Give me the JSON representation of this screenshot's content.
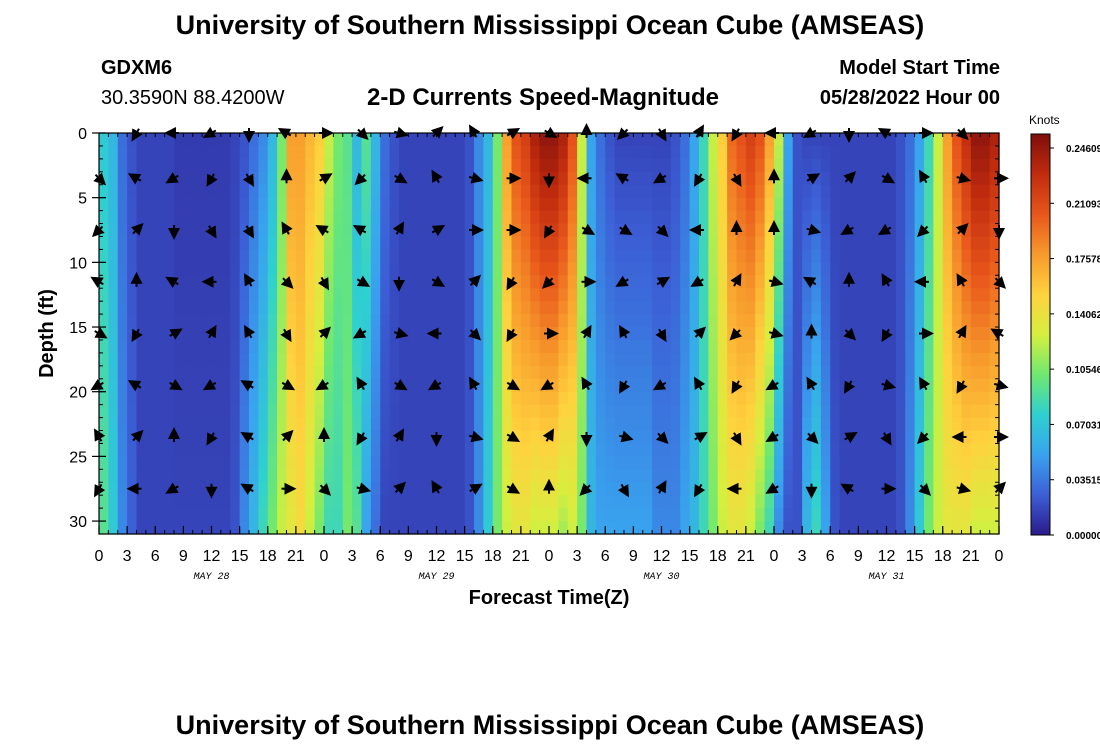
{
  "header": {
    "title": "University of Southern Mississippi Ocean Cube (AMSEAS)",
    "station_id": "GDXM6",
    "location": "30.3590N  88.4200W",
    "subtitle": "2-D Currents Speed-Magnitude",
    "model_start_label": "Model Start Time",
    "model_start_value": "05/28/2022 Hour 00"
  },
  "footer": {
    "title": "University of Southern Mississippi Ocean Cube (AMSEAS)"
  },
  "chart_data": {
    "type": "heatmap",
    "title": "2-D Currents Speed-Magnitude",
    "xlabel": "Forecast Time(Z)",
    "ylabel": "Depth (ft)",
    "x_hours_range": [
      0,
      96
    ],
    "ylim": [
      0,
      31
    ],
    "y_inverted": true,
    "x_tick_labels": [
      "0",
      "3",
      "6",
      "9",
      "12",
      "15",
      "18",
      "21",
      "0",
      "3",
      "6",
      "9",
      "12",
      "15",
      "18",
      "21",
      "0",
      "3",
      "6",
      "9",
      "12",
      "15",
      "18",
      "21",
      "0",
      "3",
      "6",
      "9",
      "12",
      "15",
      "18",
      "21",
      "0"
    ],
    "y_ticks": [
      0,
      5,
      10,
      15,
      20,
      25,
      30
    ],
    "y_tick_labels": [
      "0",
      "5",
      "10",
      "15",
      "20",
      "25",
      "30"
    ],
    "day_labels": [
      {
        "label": "MAY 28",
        "hour": 12
      },
      {
        "label": "MAY 29",
        "hour": 36
      },
      {
        "label": "MAY 30",
        "hour": 60
      },
      {
        "label": "MAY 31",
        "hour": 84
      }
    ],
    "colorbar": {
      "units": "Knots",
      "ticks": [
        "0.24609",
        "0.21093",
        "0.17578",
        "0.14062",
        "0.10546",
        "0.07031",
        "0.03515",
        "0.00000"
      ],
      "colors": [
        "#2b1a8a",
        "#3c5fd6",
        "#39a2ee",
        "#2fd0d0",
        "#6fe870",
        "#d6ef3e",
        "#ffd23e",
        "#f79a2c",
        "#e8561b",
        "#c02b0e",
        "#7e0f0c"
      ],
      "vmin": 0,
      "vmax": 0.24609
    },
    "speed_profile": {
      "hours": [
        0,
        1,
        2,
        3,
        4,
        5,
        6,
        7,
        8,
        9,
        10,
        11,
        12,
        13,
        14,
        15,
        16,
        17,
        18,
        19,
        20,
        21,
        22,
        23,
        24,
        25,
        26,
        27,
        28,
        29,
        30,
        31,
        32,
        33,
        34,
        35,
        36,
        37,
        38,
        39,
        40,
        41,
        42,
        43,
        44,
        45,
        46,
        47,
        48,
        49,
        50,
        51,
        52,
        53,
        54,
        55,
        56,
        57,
        58,
        59,
        60,
        61,
        62,
        63,
        64,
        65,
        66,
        67,
        68,
        69,
        70,
        71,
        72,
        73,
        74,
        75,
        76,
        77,
        78,
        79,
        80,
        81,
        82,
        83,
        84,
        85,
        86,
        87,
        88,
        89,
        90,
        91,
        92,
        93,
        94,
        95,
        96
      ],
      "surface": [
        0.07,
        0.06,
        0.03,
        0.02,
        0.015,
        0.015,
        0.015,
        0.015,
        0.012,
        0.012,
        0.012,
        0.012,
        0.012,
        0.012,
        0.015,
        0.02,
        0.03,
        0.04,
        0.06,
        0.1,
        0.17,
        0.17,
        0.16,
        0.15,
        0.12,
        0.1,
        0.09,
        0.06,
        0.09,
        0.06,
        0.03,
        0.02,
        0.015,
        0.015,
        0.015,
        0.015,
        0.015,
        0.015,
        0.015,
        0.02,
        0.04,
        0.06,
        0.1,
        0.17,
        0.2,
        0.21,
        0.23,
        0.24,
        0.24,
        0.23,
        0.2,
        0.12,
        0.05,
        0.03,
        0.02,
        0.015,
        0.015,
        0.015,
        0.015,
        0.015,
        0.015,
        0.02,
        0.03,
        0.05,
        0.08,
        0.12,
        0.15,
        0.19,
        0.2,
        0.21,
        0.2,
        0.17,
        0.12,
        0.05,
        0.02,
        0.015,
        0.015,
        0.015,
        0.015,
        0.015,
        0.015,
        0.015,
        0.015,
        0.015,
        0.015,
        0.02,
        0.03,
        0.05,
        0.08,
        0.12,
        0.17,
        0.2,
        0.22,
        0.24,
        0.24,
        0.23,
        0.2
      ],
      "bottom": [
        0.09,
        0.07,
        0.04,
        0.025,
        0.015,
        0.015,
        0.015,
        0.015,
        0.015,
        0.015,
        0.015,
        0.015,
        0.015,
        0.015,
        0.02,
        0.04,
        0.06,
        0.08,
        0.1,
        0.12,
        0.13,
        0.14,
        0.12,
        0.1,
        0.08,
        0.08,
        0.1,
        0.09,
        0.05,
        0.03,
        0.015,
        0.015,
        0.015,
        0.015,
        0.015,
        0.015,
        0.015,
        0.015,
        0.015,
        0.02,
        0.04,
        0.07,
        0.1,
        0.12,
        0.13,
        0.13,
        0.12,
        0.12,
        0.12,
        0.11,
        0.12,
        0.1,
        0.06,
        0.05,
        0.05,
        0.05,
        0.05,
        0.05,
        0.05,
        0.04,
        0.04,
        0.04,
        0.05,
        0.06,
        0.08,
        0.1,
        0.12,
        0.13,
        0.13,
        0.12,
        0.1,
        0.08,
        0.04,
        0.02,
        0.02,
        0.06,
        0.08,
        0.05,
        0.02,
        0.015,
        0.015,
        0.015,
        0.015,
        0.015,
        0.015,
        0.02,
        0.04,
        0.07,
        0.1,
        0.12,
        0.13,
        0.13,
        0.13,
        0.12,
        0.12,
        0.12,
        0.12
      ]
    },
    "vectors": {
      "depths": [
        0,
        3.5,
        7.5,
        11.5,
        15.5,
        19.5,
        23.5,
        27.5
      ],
      "hours": [
        0,
        4,
        8,
        12,
        16,
        20,
        24,
        28,
        32,
        36,
        40,
        44,
        48,
        52,
        56,
        60,
        64,
        68,
        72,
        76,
        80,
        84,
        88,
        92,
        96
      ]
    }
  }
}
